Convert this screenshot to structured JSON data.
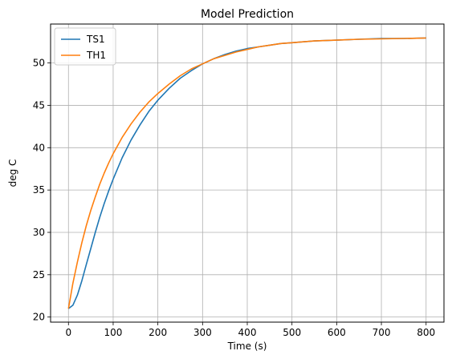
{
  "chart_data": {
    "type": "line",
    "title": "Model Prediction",
    "xlabel": "Time (s)",
    "ylabel": "deg C",
    "xlim": [
      -40,
      840
    ],
    "ylim": [
      19.4,
      54.6
    ],
    "xticks": [
      0,
      100,
      200,
      300,
      400,
      500,
      600,
      700,
      800
    ],
    "yticks": [
      20,
      25,
      30,
      35,
      40,
      45,
      50
    ],
    "grid": true,
    "legend_position": "top-left",
    "series": [
      {
        "name": "TS1",
        "color": "#1f77b4",
        "x": [
          0,
          10,
          20,
          30,
          40,
          50,
          60,
          70,
          80,
          90,
          100,
          120,
          140,
          160,
          180,
          200,
          225,
          250,
          275,
          300,
          325,
          350,
          375,
          400,
          425,
          450,
          475,
          500,
          550,
          600,
          650,
          700,
          750,
          800
        ],
        "y": [
          21.0,
          21.4,
          22.6,
          24.3,
          26.2,
          28.1,
          30.0,
          31.8,
          33.4,
          34.9,
          36.3,
          38.8,
          40.9,
          42.7,
          44.3,
          45.6,
          47.0,
          48.2,
          49.1,
          49.9,
          50.5,
          51.0,
          51.4,
          51.7,
          51.9,
          52.1,
          52.3,
          52.4,
          52.6,
          52.7,
          52.8,
          52.9,
          52.9,
          52.95
        ]
      },
      {
        "name": "TH1",
        "color": "#ff7f0e",
        "x": [
          0,
          10,
          20,
          30,
          40,
          50,
          60,
          70,
          80,
          90,
          100,
          120,
          140,
          160,
          180,
          200,
          225,
          250,
          275,
          300,
          325,
          350,
          375,
          400,
          425,
          450,
          475,
          500,
          550,
          600,
          650,
          700,
          750,
          800
        ],
        "y": [
          21.0,
          24.0,
          26.5,
          28.8,
          30.8,
          32.6,
          34.2,
          35.7,
          37.0,
          38.2,
          39.3,
          41.2,
          42.8,
          44.2,
          45.4,
          46.4,
          47.5,
          48.5,
          49.3,
          49.9,
          50.5,
          50.9,
          51.3,
          51.6,
          51.9,
          52.1,
          52.3,
          52.4,
          52.6,
          52.7,
          52.8,
          52.85,
          52.9,
          52.95
        ]
      }
    ]
  }
}
